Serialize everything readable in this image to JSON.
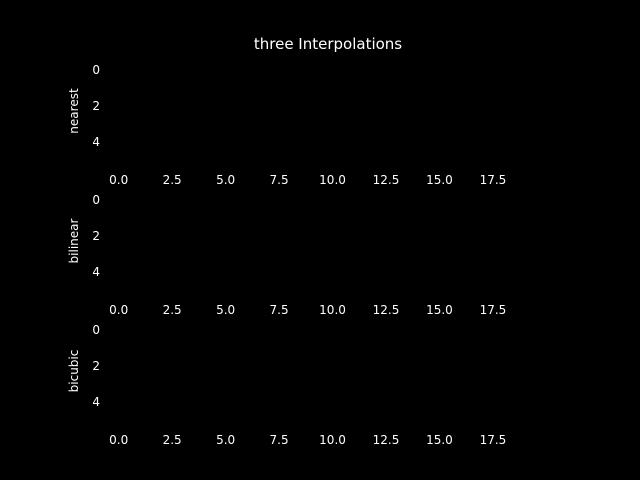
{
  "chart_data": {
    "title": "three Interpolations",
    "type": "heatmap",
    "background": "#000000",
    "text_color": "#ffffff",
    "panels": [
      {
        "ylabel": "nearest",
        "xlim": [
          -0.5,
          19.0
        ],
        "ylim": [
          0,
          5
        ],
        "xticks": [
          0.0,
          2.5,
          5.0,
          7.5,
          10.0,
          12.5,
          15.0,
          17.5
        ],
        "xtick_labels": [
          "0.0",
          "2.5",
          "5.0",
          "7.5",
          "10.0",
          "12.5",
          "15.0",
          "17.5"
        ],
        "yticks": [
          0,
          2,
          4
        ],
        "ytick_labels": [
          "0",
          "2",
          "4"
        ]
      },
      {
        "ylabel": "bilinear",
        "xlim": [
          -0.5,
          19.0
        ],
        "ylim": [
          0,
          5
        ],
        "xticks": [
          0.0,
          2.5,
          5.0,
          7.5,
          10.0,
          12.5,
          15.0,
          17.5
        ],
        "xtick_labels": [
          "0.0",
          "2.5",
          "5.0",
          "7.5",
          "10.0",
          "12.5",
          "15.0",
          "17.5"
        ],
        "yticks": [
          0,
          2,
          4
        ],
        "ytick_labels": [
          "0",
          "2",
          "4"
        ]
      },
      {
        "ylabel": "bicubic",
        "xlim": [
          -0.5,
          19.0
        ],
        "ylim": [
          0,
          5
        ],
        "xticks": [
          0.0,
          2.5,
          5.0,
          7.5,
          10.0,
          12.5,
          15.0,
          17.5
        ],
        "xtick_labels": [
          "0.0",
          "2.5",
          "5.0",
          "7.5",
          "10.0",
          "12.5",
          "15.0",
          "17.5"
        ],
        "yticks": [
          0,
          2,
          4
        ],
        "ytick_labels": [
          "0",
          "2",
          "4"
        ]
      }
    ]
  }
}
